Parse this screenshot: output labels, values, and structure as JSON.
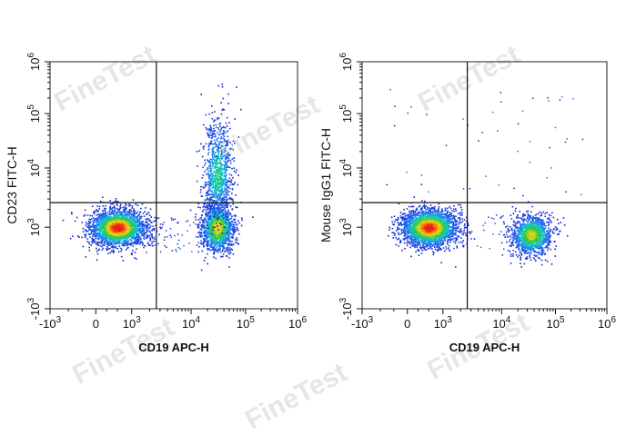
{
  "watermark": "FineTest",
  "chart_data": [
    {
      "type": "scatter",
      "subtype": "flow-cytometry-density-dot-plot",
      "xlabel": "CD19 APC-H",
      "ylabel": "CD23 FITC-H",
      "x_ticks": [
        {
          "pre": "-10",
          "exp": "3"
        },
        {
          "pre": "0",
          "exp": ""
        },
        {
          "pre": "10",
          "exp": "3"
        },
        {
          "pre": "10",
          "exp": "4"
        },
        {
          "pre": "10",
          "exp": "5"
        },
        {
          "pre": "10",
          "exp": "6"
        }
      ],
      "y_ticks": [
        {
          "pre": "10",
          "exp": "6"
        },
        {
          "pre": "10",
          "exp": "5"
        },
        {
          "pre": "10",
          "exp": "4"
        },
        {
          "pre": "10",
          "exp": "3"
        },
        {
          "pre": "-10",
          "exp": "3"
        }
      ],
      "scale": "biexponential",
      "xlim": [
        -1000,
        1000000
      ],
      "ylim": [
        -1000,
        1000000
      ],
      "gate": {
        "x": 2600,
        "y": 2600
      },
      "populations": [
        {
          "x_center": 600,
          "y_center": 1000,
          "density": "high"
        },
        {
          "x_center": 30000,
          "y_center": 1000,
          "density": "high"
        },
        {
          "x_center": 30000,
          "y_center": 7000,
          "density": "medium"
        }
      ],
      "colormap": "blue-green-yellow-red density",
      "grid": false
    },
    {
      "type": "scatter",
      "subtype": "flow-cytometry-density-dot-plot",
      "xlabel": "CD19 APC-H",
      "ylabel": "Mouse IgG1 FITC-H",
      "x_ticks": [
        {
          "pre": "-10",
          "exp": "3"
        },
        {
          "pre": "0",
          "exp": ""
        },
        {
          "pre": "10",
          "exp": "3"
        },
        {
          "pre": "10",
          "exp": "4"
        },
        {
          "pre": "10",
          "exp": "5"
        },
        {
          "pre": "10",
          "exp": "6"
        }
      ],
      "y_ticks": [
        {
          "pre": "10",
          "exp": "6"
        },
        {
          "pre": "10",
          "exp": "5"
        },
        {
          "pre": "10",
          "exp": "4"
        },
        {
          "pre": "10",
          "exp": "3"
        },
        {
          "pre": "-10",
          "exp": "3"
        }
      ],
      "scale": "biexponential",
      "xlim": [
        -1000,
        1000000
      ],
      "ylim": [
        -1000,
        1000000
      ],
      "gate": {
        "x": 2600,
        "y": 2600
      },
      "populations": [
        {
          "x_center": 600,
          "y_center": 1000,
          "density": "high"
        },
        {
          "x_center": 35000,
          "y_center": 800,
          "density": "high"
        }
      ],
      "colormap": "blue-green-yellow-red density",
      "grid": false
    }
  ]
}
